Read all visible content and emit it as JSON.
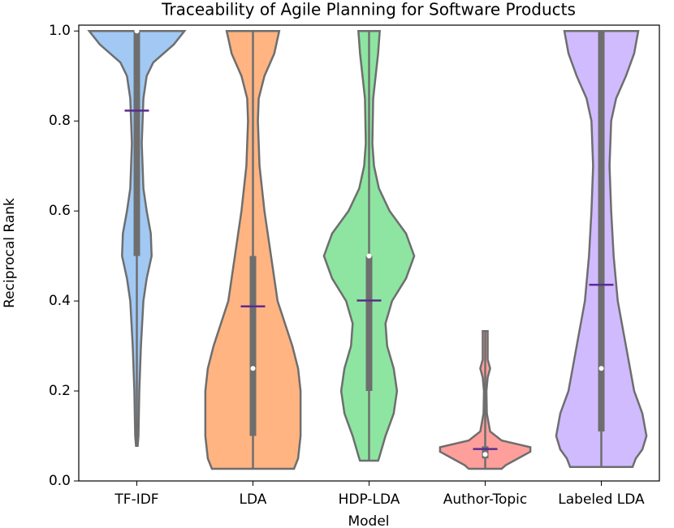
{
  "chart_data": {
    "type": "violin",
    "title": "Traceability of Agile Planning for Software Products",
    "x_label": "Model",
    "y_label": "Reciprocal Rank",
    "categories": [
      "TF-IDF",
      "LDA",
      "HDP-LDA",
      "Author-Topic",
      "Labeled LDA"
    ],
    "ylim": [
      0,
      1.013
    ],
    "yticks": [
      {
        "value": 0,
        "label": "0.0"
      },
      0.2,
      0.4,
      0.6,
      0.8,
      {
        "value": 1,
        "label": "1.0"
      }
    ],
    "series": [
      {
        "name": "TF-IDF",
        "color": "#a1c9f4",
        "min": 0.078,
        "q1": 0.5,
        "median": 1.0,
        "q3": 1.0,
        "max": 1.0,
        "mean": 0.823,
        "density": {
          "y": [
            0.078,
            0.1,
            0.2,
            0.3,
            0.4,
            0.45,
            0.5,
            0.55,
            0.6,
            0.65,
            0.75,
            0.85,
            0.9,
            0.93,
            0.97,
            1.0
          ],
          "width": [
            1,
            2,
            3,
            5,
            8,
            12,
            18,
            17,
            12,
            8,
            6,
            8,
            12,
            20,
            45,
            58
          ]
        }
      },
      {
        "name": "LDA",
        "color": "#ffb482",
        "min": 0.027,
        "q1": 0.1,
        "median": 0.25,
        "q3": 0.5,
        "max": 1.0,
        "mean": 0.388,
        "density": {
          "y": [
            0.027,
            0.05,
            0.1,
            0.2,
            0.25,
            0.3,
            0.4,
            0.5,
            0.6,
            0.7,
            0.8,
            0.85,
            0.9,
            0.95,
            1.0
          ],
          "width": [
            50,
            55,
            58,
            58,
            55,
            48,
            30,
            22,
            14,
            8,
            6,
            7,
            14,
            26,
            32
          ]
        }
      },
      {
        "name": "HDP-LDA",
        "color": "#8de5a1",
        "min": 0.045,
        "q1": 0.2,
        "median": 0.5,
        "q3": 0.5,
        "max": 1.0,
        "mean": 0.401,
        "density": {
          "y": [
            0.045,
            0.05,
            0.1,
            0.15,
            0.2,
            0.25,
            0.3,
            0.35,
            0.4,
            0.45,
            0.5,
            0.55,
            0.6,
            0.65,
            0.7,
            0.75,
            0.85,
            0.9,
            0.95,
            1.0
          ],
          "width": [
            11,
            12,
            20,
            30,
            34,
            30,
            22,
            20,
            28,
            45,
            55,
            45,
            25,
            12,
            6,
            4,
            5,
            8,
            11,
            13
          ]
        }
      },
      {
        "name": "Author-Topic",
        "color": "#ff9f9b",
        "min": 0.027,
        "q1": 0.05,
        "median": 0.059,
        "q3": 0.077,
        "max": 0.333,
        "mean": 0.071,
        "density": {
          "y": [
            0.027,
            0.035,
            0.05,
            0.065,
            0.075,
            0.09,
            0.11,
            0.15,
            0.2,
            0.23,
            0.25,
            0.27,
            0.3,
            0.333
          ],
          "width": [
            20,
            25,
            40,
            55,
            55,
            20,
            6,
            2,
            1.5,
            3,
            6,
            3,
            3,
            3
          ]
        }
      },
      {
        "name": "Labeled LDA",
        "color": "#d0bbff",
        "min": 0.031,
        "q1": 0.11,
        "median": 0.25,
        "q3": 1.0,
        "max": 1.0,
        "mean": 0.436,
        "density": {
          "y": [
            0.031,
            0.05,
            0.07,
            0.1,
            0.15,
            0.2,
            0.3,
            0.4,
            0.5,
            0.6,
            0.7,
            0.8,
            0.85,
            0.9,
            0.95,
            1.0
          ],
          "width": [
            38,
            42,
            50,
            55,
            50,
            40,
            30,
            20,
            15,
            12,
            10,
            12,
            18,
            30,
            40,
            45
          ]
        }
      }
    ]
  }
}
